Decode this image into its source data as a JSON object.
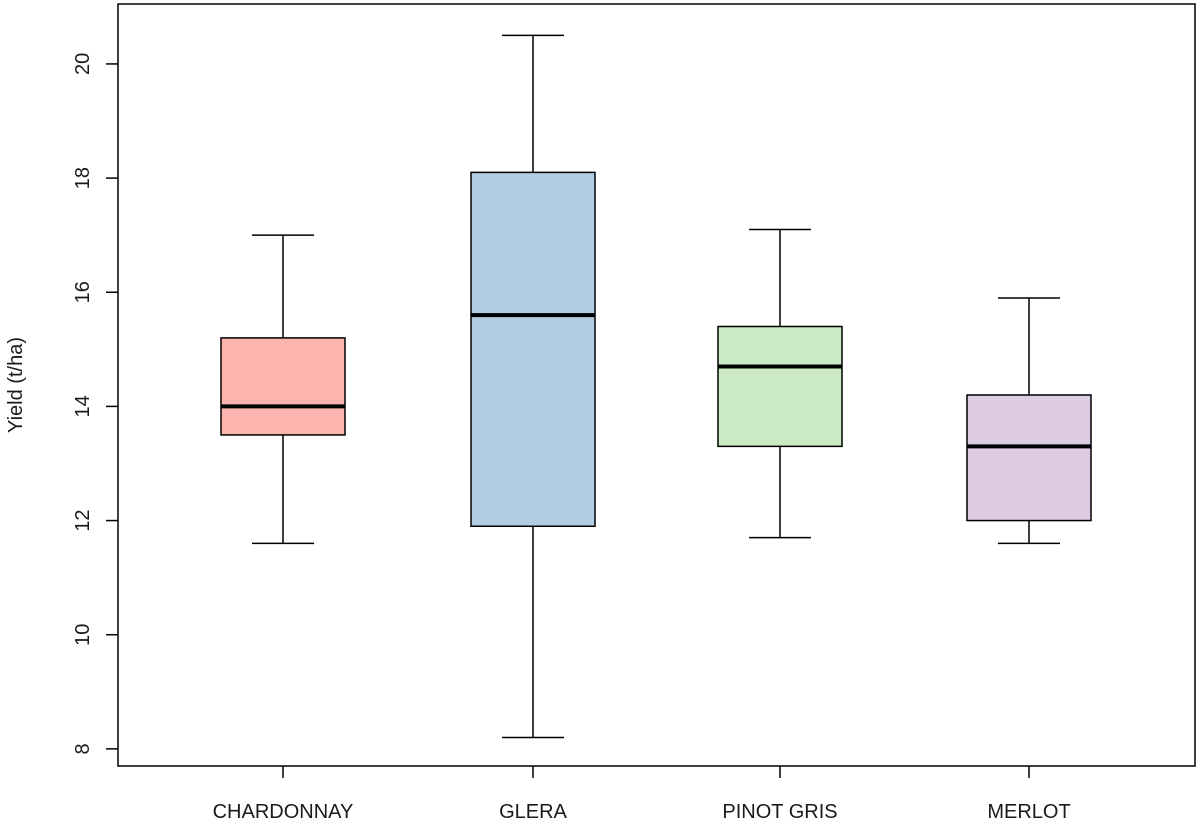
{
  "chart_data": {
    "type": "boxplot",
    "title": "",
    "xlabel": "",
    "ylabel": "Yield (t/ha)",
    "ylim": [
      7.7,
      21.05
    ],
    "yticks": [
      8,
      10,
      12,
      14,
      16,
      18,
      20
    ],
    "grid": false,
    "legend": "none",
    "categories": [
      "CHARDONNAY",
      "GLERA",
      "PINOT GRIS",
      "MERLOT"
    ],
    "boxes": [
      {
        "category": "CHARDONNAY",
        "min": 11.6,
        "q1": 13.5,
        "median": 14.0,
        "q3": 15.2,
        "max": 17.0,
        "color": "#fbb4ae"
      },
      {
        "category": "GLERA",
        "min": 8.2,
        "q1": 11.9,
        "median": 15.6,
        "q3": 18.1,
        "max": 20.5,
        "color": "#b3cde3"
      },
      {
        "category": "PINOT GRIS",
        "min": 11.7,
        "q1": 13.3,
        "median": 14.7,
        "q3": 15.4,
        "max": 17.1,
        "color": "#ccebc5"
      },
      {
        "category": "MERLOT",
        "min": 11.6,
        "q1": 12.0,
        "median": 13.3,
        "q3": 14.2,
        "max": 15.9,
        "color": "#decbe4"
      }
    ]
  }
}
